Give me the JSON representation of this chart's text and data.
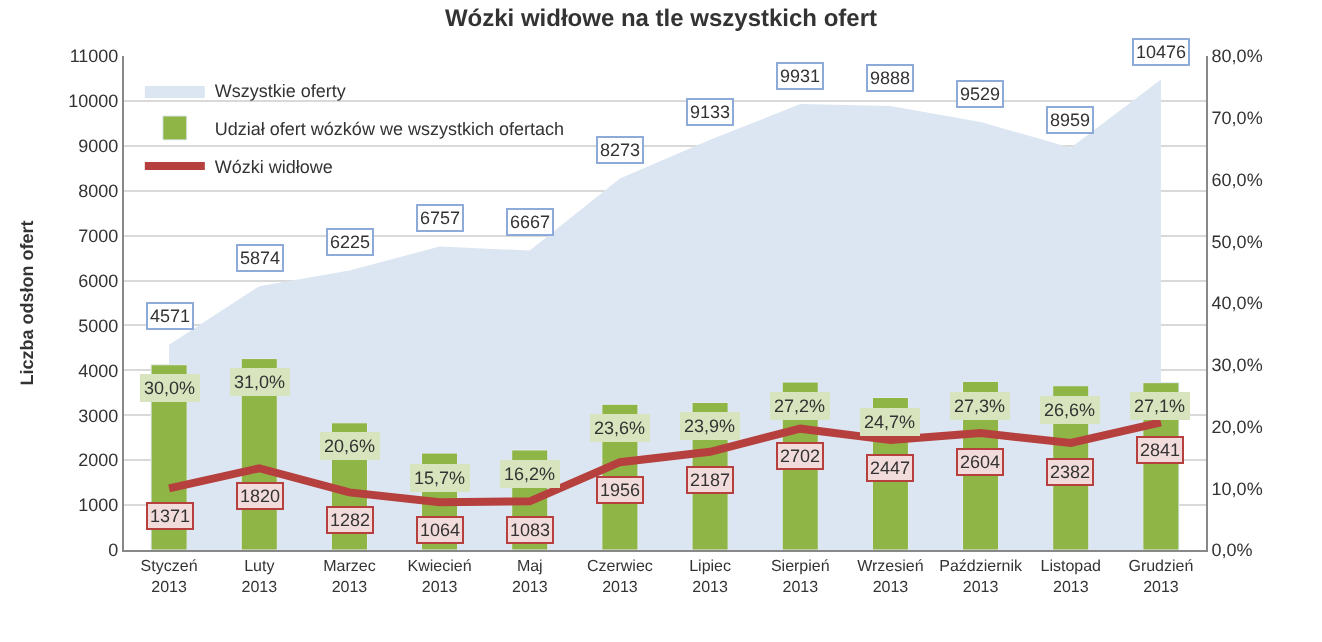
{
  "chart_data": {
    "type": "bar",
    "title": "Wózki widłowe na tle wszystkich ofert",
    "ylabel": "Liczba odsłon ofert",
    "categories": [
      "Styczeń 2013",
      "Luty 2013",
      "Marzec 2013",
      "Kwiecień 2013",
      "Maj 2013",
      "Czerwiec 2013",
      "Lipiec 2013",
      "Sierpień 2013",
      "Wrzesień 2013",
      "Październik 2013",
      "Listopad 2013",
      "Grudzień 2013"
    ],
    "series": [
      {
        "name": "Wszystkie oferty",
        "type": "area",
        "color": "#dce6f2",
        "values": [
          4571,
          5874,
          6225,
          6757,
          6667,
          8273,
          9133,
          9931,
          9888,
          9529,
          8959,
          10476
        ],
        "value_labels": [
          "4571",
          "5874",
          "6225",
          "6757",
          "6667",
          "8273",
          "9133",
          "9931",
          "9888",
          "9529",
          "8959",
          "10476"
        ]
      },
      {
        "name": "Udział ofert wózków we wszystkich ofertach",
        "axis": "y2",
        "color": "#8fb547",
        "values": [
          30.0,
          31.0,
          20.6,
          15.7,
          16.2,
          23.6,
          23.9,
          27.2,
          24.7,
          27.3,
          26.6,
          27.1
        ],
        "value_labels": [
          "30,0%",
          "31,0%",
          "20,6%",
          "15,7%",
          "16,2%",
          "23,6%",
          "23,9%",
          "27,2%",
          "24,7%",
          "27,3%",
          "26,6%",
          "27,1%"
        ]
      },
      {
        "name": "Wózki widłowe",
        "type": "line",
        "color": "#b5403e",
        "values": [
          1371,
          1820,
          1282,
          1064,
          1083,
          1956,
          2187,
          2702,
          2447,
          2604,
          2382,
          2841
        ],
        "value_labels": [
          "1371",
          "1820",
          "1282",
          "1064",
          "1083",
          "1956",
          "2187",
          "2702",
          "2447",
          "2604",
          "2382",
          "2841"
        ]
      }
    ],
    "ylim": [
      0,
      11000
    ],
    "yticks": [
      0,
      1000,
      2000,
      3000,
      4000,
      5000,
      6000,
      7000,
      8000,
      9000,
      10000,
      11000
    ],
    "y2lim": [
      0,
      80
    ],
    "y2ticks": [
      {
        "value": 0,
        "label": "0,0%"
      },
      {
        "value": 10,
        "label": "10,0%"
      },
      {
        "value": 20,
        "label": "20,0%"
      },
      {
        "value": 30,
        "label": "30,0%"
      },
      {
        "value": 40,
        "label": "40,0%"
      },
      {
        "value": 50,
        "label": "50,0%"
      },
      {
        "value": 60,
        "label": "60,0%"
      },
      {
        "value": 70,
        "label": "70,0%"
      },
      {
        "value": 80,
        "label": "80,0%"
      }
    ],
    "grid": "y",
    "legend": "top left",
    "marker": "none",
    "line_style": "solid"
  }
}
